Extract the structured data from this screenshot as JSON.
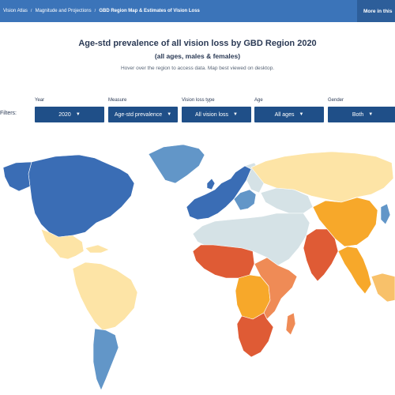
{
  "breadcrumbs": {
    "items": [
      "Vision Atlas",
      "Magnitude and Projections",
      "GBD Region Map & Estimates of Vision Loss"
    ],
    "separator": "/"
  },
  "more_button": "More in this",
  "title": "Age-std prevalence of all vision loss by GBD Region 2020",
  "subtitle": "(all ages, males & females)",
  "hint": "Hover over the region to access data. Map best viewed on desktop.",
  "filters": {
    "label": "Filters:",
    "items": [
      {
        "label": "Year",
        "value": "2020"
      },
      {
        "label": "Measure",
        "value": "Age-std prevalence"
      },
      {
        "label": "Vision loss type",
        "value": "All vision loss"
      },
      {
        "label": "Age",
        "value": "All ages"
      },
      {
        "label": "Gender",
        "value": "Both"
      }
    ]
  },
  "colors": {
    "header": "#3b74b9",
    "dropdown": "#1f4f88",
    "dark_blue": "#3a6db5",
    "mid_blue": "#6296c8",
    "light_grey": "#d5e2e6",
    "pale_yellow": "#fde4a6",
    "light_orange": "#f8c16a",
    "orange": "#f7a82a",
    "salmon": "#ef8b56",
    "red_orange": "#df5b35"
  }
}
